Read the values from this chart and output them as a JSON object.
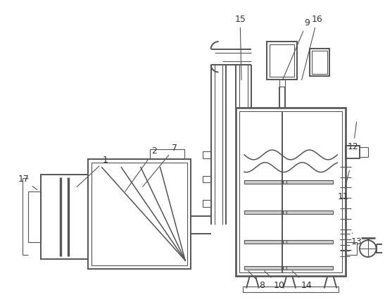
{
  "bg_color": "#ffffff",
  "line_color": "#555555",
  "line_width": 1.4,
  "thin_line": 0.8,
  "label_color": "#333333",
  "label_fontsize": 9
}
